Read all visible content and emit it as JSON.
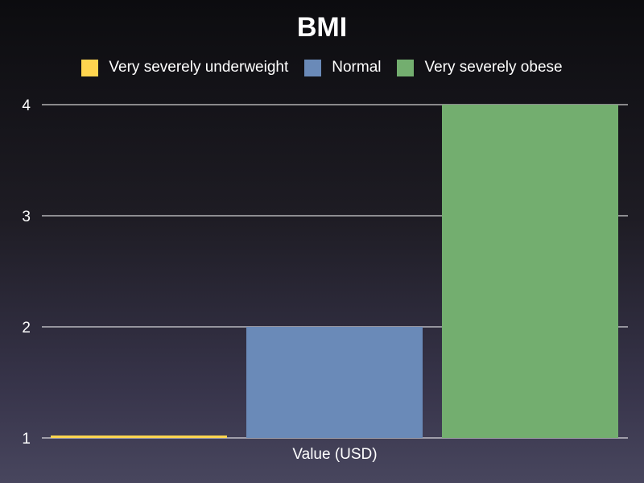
{
  "chart_data": {
    "type": "bar",
    "title": "BMI",
    "xlabel": "Value (USD)",
    "ylabel": "",
    "ylim": [
      1,
      4
    ],
    "yticks": [
      1,
      2,
      3,
      4
    ],
    "grid": true,
    "legend_position": "top",
    "series": [
      {
        "name": "Very severely underweight",
        "value": 1,
        "color": "#ffd54f"
      },
      {
        "name": "Normal",
        "value": 2,
        "color": "#6a8ab8"
      },
      {
        "name": "Very severely obese",
        "value": 4,
        "color": "#73ae6f"
      }
    ]
  }
}
